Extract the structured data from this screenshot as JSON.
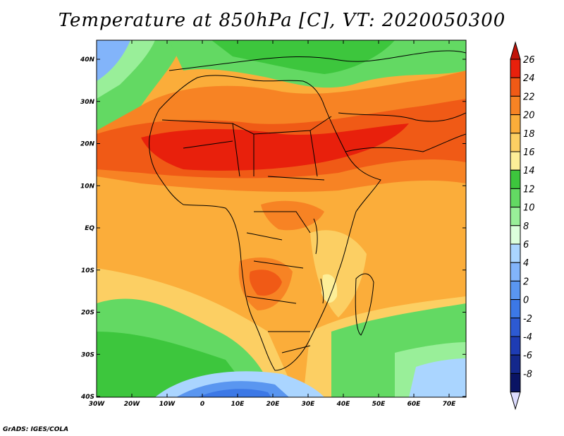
{
  "title": "Temperature at 850hPa [C], VT: 2020050300",
  "credit": "GrADS: IGES/COLA",
  "map": {
    "lon_ticks": [
      "30W",
      "20W",
      "10W",
      "0",
      "10E",
      "20E",
      "30E",
      "40E",
      "50E",
      "60E",
      "70E"
    ],
    "lat_ticks": [
      "40N",
      "30N",
      "20N",
      "10N",
      "EQ",
      "10S",
      "20S",
      "30S",
      "40S"
    ],
    "lon_range": [
      -30,
      75
    ],
    "lat_range": [
      -40,
      45
    ]
  },
  "colorbar": {
    "levels": [
      "26",
      "24",
      "22",
      "20",
      "18",
      "16",
      "14",
      "12",
      "10",
      "8",
      "6",
      "4",
      "2",
      "0",
      "-2",
      "-4",
      "-6",
      "-8"
    ],
    "colors": [
      "#e8200c",
      "#f05a16",
      "#f78324",
      "#fbad3a",
      "#fccf63",
      "#fdef98",
      "#3dc63d",
      "#63d963",
      "#99ef99",
      "#dcffdc",
      "#aad5ff",
      "#82b4fa",
      "#5a96f0",
      "#3c78e6",
      "#2d5ad2",
      "#1e3cb4",
      "#14288c",
      "#0a1464"
    ],
    "top_arrow_color": "#c0140a",
    "bottom_arrow_color": "#dcdcff"
  }
}
